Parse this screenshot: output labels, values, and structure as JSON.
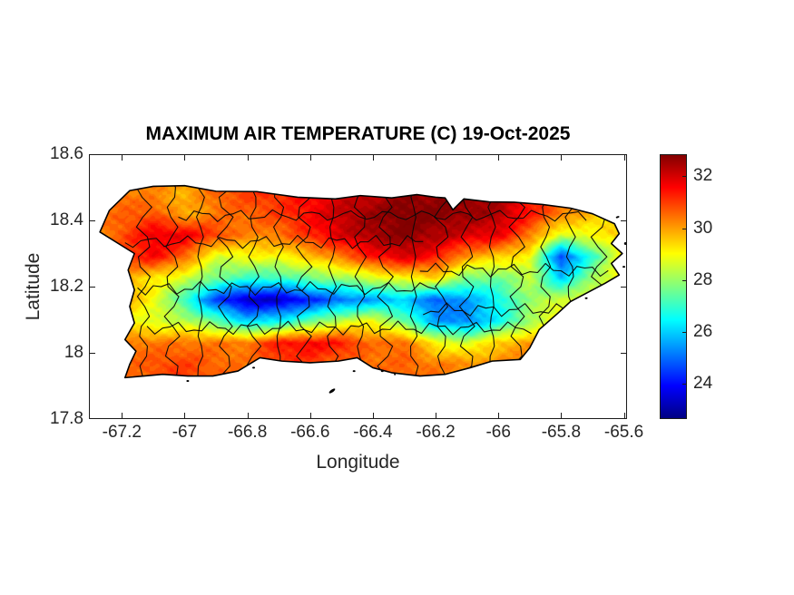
{
  "figure": {
    "background": "#ffffff",
    "axis_color": "#1a1a1a",
    "tick_label_color": "#262626"
  },
  "chart_data": {
    "type": "heatmap",
    "title": "MAXIMUM AIR TEMPERATURE (C) 19-Oct-2025",
    "xlabel": "Longitude",
    "ylabel": "Latitude",
    "region": "Puerto Rico",
    "xlim": [
      -67.305,
      -65.59
    ],
    "ylim": [
      17.8,
      18.6
    ],
    "x_ticks": [
      -67.2,
      -67.0,
      -66.8,
      -66.6,
      -66.4,
      -66.2,
      -66.0,
      -65.8,
      -65.6
    ],
    "x_tick_labels": [
      "-67.2",
      "-67",
      "-66.8",
      "-66.6",
      "-66.4",
      "-66.2",
      "-66",
      "-65.8",
      "-65.6"
    ],
    "y_ticks": [
      18.6,
      18.4,
      18.2,
      18.0,
      17.8
    ],
    "y_tick_labels": [
      "18.6",
      "18.4",
      "18.2",
      "18",
      "17.8"
    ],
    "grid_on": false,
    "colorbar": {
      "colormap": "jet",
      "range": [
        22.65,
        32.85
      ],
      "ticks": [
        32,
        30,
        28,
        26,
        24
      ],
      "tick_labels": [
        "32",
        "30",
        "28",
        "26",
        "24"
      ],
      "position": "right"
    },
    "temperature_grid": {
      "lon_start": -67.3,
      "lon_step": 0.1,
      "n_lon": 19,
      "lat_start": 18.55,
      "lat_step": 0.065,
      "n_lat": 11,
      "units": "C",
      "values": [
        [
          30.5,
          30.5,
          30.5,
          30.5,
          31,
          31,
          31.5,
          31.5,
          32,
          32,
          32.5,
          32.5,
          32.8,
          32.5,
          31.5,
          30.8,
          30.2,
          30,
          30
        ],
        [
          30.2,
          30.4,
          30.2,
          29.8,
          30.6,
          31,
          31.2,
          31.5,
          32,
          32.2,
          32.6,
          32.6,
          32.8,
          32.4,
          31.4,
          30.6,
          30.2,
          30,
          30
        ],
        [
          30.2,
          30.6,
          30.8,
          29.8,
          30.4,
          30.6,
          31,
          31.6,
          32.2,
          32.6,
          32.9,
          32.8,
          32.6,
          32.4,
          31.4,
          30.4,
          29.6,
          29.6,
          29.6
        ],
        [
          30,
          30.8,
          31.8,
          31.8,
          31,
          30.2,
          30.4,
          31.2,
          32,
          32.5,
          32.8,
          32.4,
          32,
          31.8,
          30.4,
          28.6,
          29,
          29.5,
          29.5
        ],
        [
          30.4,
          30.8,
          31.6,
          30.6,
          28.6,
          29,
          29,
          29.6,
          30.4,
          31.4,
          32,
          31.4,
          30,
          29.5,
          29,
          24.5,
          27,
          29.2,
          29.3
        ],
        [
          29.8,
          30,
          29.2,
          28.6,
          27.6,
          27,
          27,
          27.6,
          28,
          28.6,
          29,
          29.4,
          27.6,
          27.6,
          28.4,
          26,
          28,
          29.4,
          29.5
        ],
        [
          30,
          30,
          29,
          27,
          24.5,
          23.3,
          23.3,
          24.2,
          25,
          25.5,
          26,
          24.8,
          25.5,
          26.5,
          28,
          28.5,
          29,
          29.4,
          29.5
        ],
        [
          29.6,
          29.2,
          28.6,
          28.4,
          27.5,
          26,
          26.5,
          27.5,
          28.5,
          29,
          27.5,
          25.5,
          25.2,
          26.5,
          28,
          29.5,
          29.5,
          29.5,
          29.5
        ],
        [
          30.4,
          30.4,
          30.4,
          30.4,
          30.4,
          30.4,
          31.4,
          31.6,
          31.4,
          30.4,
          30.6,
          29,
          28.6,
          29.6,
          30,
          30,
          30,
          30,
          30
        ],
        [
          30.4,
          30.4,
          30.8,
          31,
          30.6,
          30.4,
          31,
          31,
          30.5,
          30.5,
          30.6,
          30.4,
          30.2,
          30.2,
          30.4,
          30,
          29.6,
          29.5,
          29.5
        ],
        [
          30.4,
          30.4,
          30.8,
          31,
          30.6,
          30.4,
          31,
          31,
          30.5,
          30.5,
          30.6,
          30.4,
          30.2,
          30.2,
          30.4,
          30,
          29.6,
          29.5,
          29.5
        ]
      ]
    },
    "coastline": [
      [
        -67.27,
        18.365
      ],
      [
        -67.24,
        18.43
      ],
      [
        -67.175,
        18.49
      ],
      [
        -67.1,
        18.503
      ],
      [
        -67.0,
        18.505
      ],
      [
        -66.9,
        18.488
      ],
      [
        -66.77,
        18.487
      ],
      [
        -66.64,
        18.47
      ],
      [
        -66.52,
        18.465
      ],
      [
        -66.44,
        18.475
      ],
      [
        -66.34,
        18.468
      ],
      [
        -66.26,
        18.478
      ],
      [
        -66.2,
        18.47
      ],
      [
        -66.17,
        18.468
      ],
      [
        -66.145,
        18.432
      ],
      [
        -66.11,
        18.465
      ],
      [
        -66.03,
        18.456
      ],
      [
        -65.95,
        18.455
      ],
      [
        -65.86,
        18.448
      ],
      [
        -65.77,
        18.437
      ],
      [
        -65.7,
        18.42
      ],
      [
        -65.63,
        18.39
      ],
      [
        -65.615,
        18.36
      ],
      [
        -65.64,
        18.33
      ],
      [
        -65.605,
        18.3
      ],
      [
        -65.64,
        18.27
      ],
      [
        -65.615,
        18.235
      ],
      [
        -65.66,
        18.21
      ],
      [
        -65.72,
        18.18
      ],
      [
        -65.77,
        18.155
      ],
      [
        -65.81,
        18.12
      ],
      [
        -65.87,
        18.07
      ],
      [
        -65.9,
        18.015
      ],
      [
        -65.93,
        17.98
      ],
      [
        -66.02,
        17.975
      ],
      [
        -66.09,
        17.955
      ],
      [
        -66.17,
        17.935
      ],
      [
        -66.25,
        17.93
      ],
      [
        -66.34,
        17.94
      ],
      [
        -66.4,
        17.955
      ],
      [
        -66.45,
        17.985
      ],
      [
        -66.51,
        17.975
      ],
      [
        -66.6,
        17.97
      ],
      [
        -66.69,
        17.975
      ],
      [
        -66.76,
        17.985
      ],
      [
        -66.83,
        17.945
      ],
      [
        -66.91,
        17.93
      ],
      [
        -66.99,
        17.93
      ],
      [
        -67.07,
        17.935
      ],
      [
        -67.13,
        17.93
      ],
      [
        -67.19,
        17.925
      ],
      [
        -67.175,
        17.965
      ],
      [
        -67.155,
        18.005
      ],
      [
        -67.19,
        18.04
      ],
      [
        -67.16,
        18.09
      ],
      [
        -67.175,
        18.14
      ],
      [
        -67.16,
        18.19
      ],
      [
        -67.18,
        18.25
      ],
      [
        -67.16,
        18.3
      ]
    ],
    "islets": [
      [
        -66.53,
        17.885,
        4,
        1.5,
        -35
      ],
      [
        -66.46,
        17.945,
        1.5,
        1,
        0
      ],
      [
        -66.37,
        17.945,
        1.5,
        1,
        0
      ],
      [
        -66.33,
        17.935,
        1,
        1,
        0
      ],
      [
        -65.72,
        18.165,
        1.5,
        1,
        0
      ],
      [
        -65.62,
        18.41,
        2,
        1,
        -20
      ],
      [
        -65.595,
        18.33,
        1.5,
        1.5,
        0
      ],
      [
        -65.6,
        18.26,
        1.5,
        1,
        0
      ],
      [
        -65.59,
        18.245,
        1,
        1,
        0
      ],
      [
        -66.99,
        17.915,
        1.5,
        1,
        0
      ],
      [
        -66.78,
        17.955,
        1.5,
        1,
        0
      ]
    ],
    "municipal_border_lons": [
      -67.13,
      -67.04,
      -66.95,
      -66.87,
      -66.78,
      -66.7,
      -66.62,
      -66.53,
      -66.44,
      -66.36,
      -66.27,
      -66.18,
      -66.1,
      -66.02,
      -65.94,
      -65.85,
      -65.77,
      -65.68
    ],
    "municipal_border_lats": [
      {
        "lat": 18.415,
        "lon0": -67.02,
        "lon1": -65.7
      },
      {
        "lat": 18.335,
        "lon0": -67.19,
        "lon1": -66.22
      },
      {
        "lat": 18.25,
        "lon0": -66.25,
        "lon1": -65.63
      },
      {
        "lat": 18.195,
        "lon0": -67.15,
        "lon1": -66.18
      },
      {
        "lat": 18.13,
        "lon0": -66.24,
        "lon1": -65.76
      },
      {
        "lat": 18.075,
        "lon0": -67.12,
        "lon1": -65.88
      }
    ]
  }
}
